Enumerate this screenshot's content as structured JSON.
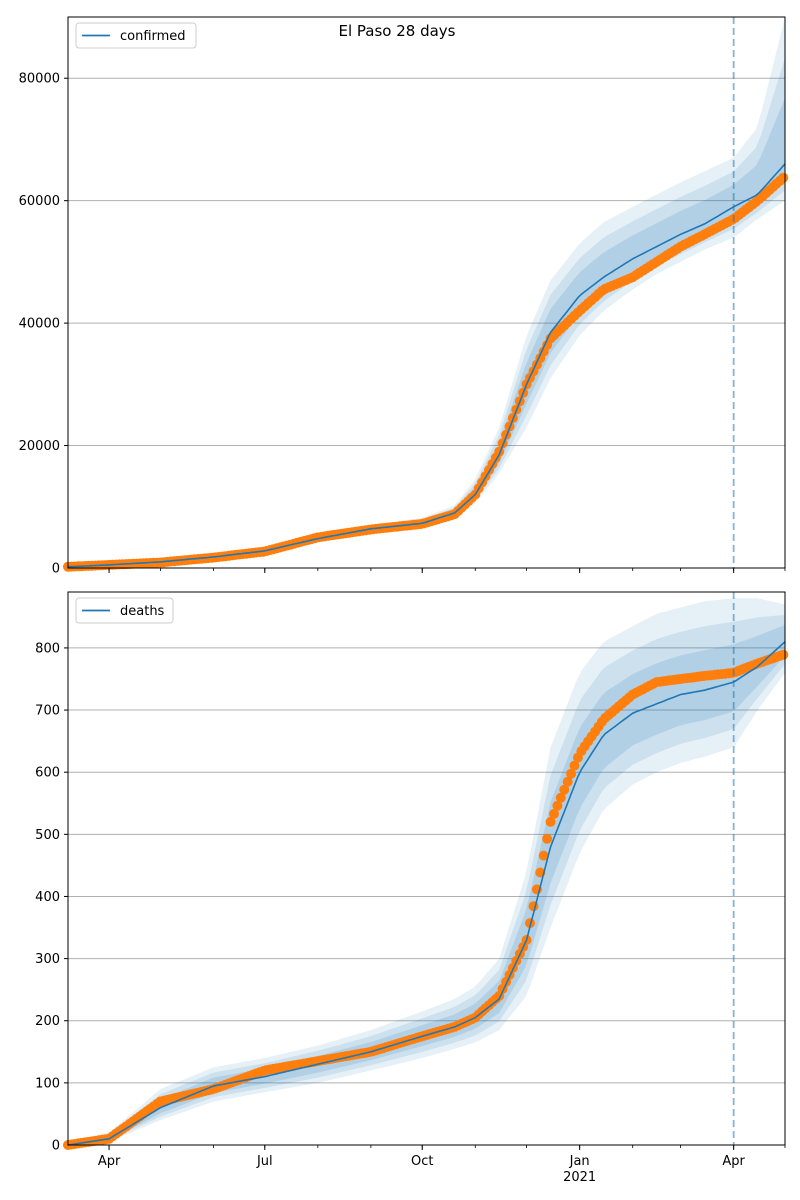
{
  "figure": {
    "title": "El Paso 28 days"
  },
  "colors": {
    "model": "#1f77b4",
    "observed": "#ff7f0e",
    "band": "#1f77b4",
    "grid": "#b0b0b0"
  },
  "x_axis": {
    "ticks": [
      {
        "label": "Apr",
        "date": "2020-04-01"
      },
      {
        "label": "Jul",
        "date": "2020-07-01"
      },
      {
        "label": "Oct",
        "date": "2020-10-01"
      },
      {
        "label": "Jan",
        "date": "2021-01-01"
      },
      {
        "label": "Apr",
        "date": "2021-04-01"
      }
    ],
    "year_label": "2021"
  },
  "chart_data": [
    {
      "type": "line",
      "legend": {
        "label": "confirmed",
        "position": "top-left"
      },
      "xlim": [
        "2020-03-08",
        "2021-05-01"
      ],
      "ylim": [
        0,
        90000
      ],
      "yticks": [
        0,
        20000,
        40000,
        60000,
        80000
      ],
      "grid": "y",
      "forecast_start": "2021-04-01",
      "series": [
        {
          "name": "confirmed",
          "role": "model",
          "x": [
            "2020-03-08",
            "2020-04-01",
            "2020-05-01",
            "2020-06-01",
            "2020-07-01",
            "2020-08-01",
            "2020-09-01",
            "2020-10-01",
            "2020-10-20",
            "2020-11-01",
            "2020-11-15",
            "2020-12-01",
            "2020-12-15",
            "2021-01-01",
            "2021-01-15",
            "2021-02-01",
            "2021-02-15",
            "2021-03-01",
            "2021-03-15",
            "2021-04-01",
            "2021-04-15",
            "2021-05-01"
          ],
          "y": [
            200,
            500,
            1000,
            1800,
            2800,
            4800,
            6400,
            7300,
            9000,
            12000,
            18500,
            30000,
            38500,
            44500,
            47500,
            50500,
            52500,
            54500,
            56200,
            59000,
            61000,
            66000
          ]
        },
        {
          "name": "confirmed-observed",
          "role": "observed",
          "x": [
            "2020-03-08",
            "2020-04-01",
            "2020-05-01",
            "2020-06-01",
            "2020-07-01",
            "2020-08-01",
            "2020-09-01",
            "2020-10-01",
            "2020-10-20",
            "2020-11-01",
            "2020-11-15",
            "2020-12-01",
            "2020-12-15",
            "2021-01-01",
            "2021-01-15",
            "2021-02-01",
            "2021-02-15",
            "2021-03-01",
            "2021-03-15",
            "2021-04-01",
            "2021-04-15",
            "2021-05-01"
          ],
          "y": [
            200,
            500,
            900,
            1700,
            2700,
            5000,
            6300,
            7200,
            8800,
            12000,
            19000,
            30000,
            37500,
            42000,
            45500,
            47500,
            50000,
            52500,
            54500,
            57000,
            60000,
            64000
          ]
        }
      ],
      "band": {
        "x": [
          "2020-03-08",
          "2020-04-01",
          "2020-05-01",
          "2020-06-01",
          "2020-07-01",
          "2020-08-01",
          "2020-09-01",
          "2020-10-01",
          "2020-10-20",
          "2020-11-01",
          "2020-11-15",
          "2020-12-01",
          "2020-12-15",
          "2021-01-01",
          "2021-01-15",
          "2021-02-01",
          "2021-02-15",
          "2021-03-01",
          "2021-03-15",
          "2021-04-01",
          "2021-04-15",
          "2021-05-01"
        ],
        "lower": [
          0,
          300,
          700,
          1400,
          2400,
          4200,
          5800,
          6600,
          8000,
          10500,
          15500,
          23000,
          31000,
          38000,
          42000,
          45500,
          48000,
          50000,
          52000,
          54000,
          57000,
          60000
        ],
        "upper": [
          400,
          800,
          1400,
          2300,
          3300,
          5500,
          7000,
          8200,
          10200,
          14500,
          23000,
          38000,
          47000,
          53000,
          56500,
          59000,
          61000,
          63000,
          64800,
          67000,
          72000,
          90000
        ]
      }
    },
    {
      "type": "line",
      "legend": {
        "label": "deaths",
        "position": "top-left"
      },
      "xlim": [
        "2020-03-08",
        "2021-05-01"
      ],
      "ylim": [
        0,
        890
      ],
      "yticks": [
        0,
        100,
        200,
        300,
        400,
        500,
        600,
        700,
        800
      ],
      "grid": "y",
      "forecast_start": "2021-04-01",
      "series": [
        {
          "name": "deaths",
          "role": "model",
          "x": [
            "2020-03-08",
            "2020-04-01",
            "2020-05-01",
            "2020-06-01",
            "2020-07-01",
            "2020-08-01",
            "2020-09-01",
            "2020-10-01",
            "2020-10-20",
            "2020-11-01",
            "2020-11-15",
            "2020-12-01",
            "2020-12-15",
            "2021-01-01",
            "2021-01-15",
            "2021-02-01",
            "2021-02-15",
            "2021-03-01",
            "2021-03-15",
            "2021-04-01",
            "2021-04-15",
            "2021-05-01"
          ],
          "y": [
            0,
            10,
            60,
            95,
            110,
            130,
            150,
            175,
            190,
            205,
            235,
            330,
            480,
            600,
            660,
            695,
            710,
            725,
            732,
            745,
            770,
            810
          ]
        },
        {
          "name": "deaths-observed",
          "role": "observed",
          "x": [
            "2020-03-08",
            "2020-04-01",
            "2020-05-01",
            "2020-06-01",
            "2020-07-01",
            "2020-08-01",
            "2020-09-01",
            "2020-10-01",
            "2020-10-20",
            "2020-11-01",
            "2020-11-15",
            "2020-12-01",
            "2020-12-15",
            "2021-01-01",
            "2021-01-15",
            "2021-02-01",
            "2021-02-15",
            "2021-03-01",
            "2021-03-15",
            "2021-04-01",
            "2021-04-15",
            "2021-05-01"
          ],
          "y": [
            0,
            10,
            70,
            90,
            120,
            135,
            150,
            175,
            190,
            205,
            240,
            330,
            520,
            630,
            685,
            725,
            745,
            750,
            755,
            760,
            775,
            790
          ]
        }
      ],
      "band": {
        "x": [
          "2020-03-08",
          "2020-04-01",
          "2020-05-01",
          "2020-06-01",
          "2020-07-01",
          "2020-08-01",
          "2020-09-01",
          "2020-10-01",
          "2020-10-20",
          "2020-11-01",
          "2020-11-15",
          "2020-12-01",
          "2020-12-15",
          "2021-01-01",
          "2021-01-15",
          "2021-02-01",
          "2021-02-15",
          "2021-03-01",
          "2021-03-15",
          "2021-04-01",
          "2021-04-15",
          "2021-05-01"
        ],
        "lower": [
          0,
          5,
          40,
          70,
          85,
          100,
          120,
          140,
          155,
          165,
          185,
          240,
          350,
          470,
          540,
          580,
          600,
          615,
          625,
          640,
          700,
          760
        ],
        "upper": [
          5,
          20,
          90,
          125,
          140,
          160,
          185,
          215,
          235,
          255,
          300,
          440,
          640,
          760,
          810,
          835,
          855,
          865,
          875,
          880,
          880,
          870
        ]
      }
    }
  ]
}
